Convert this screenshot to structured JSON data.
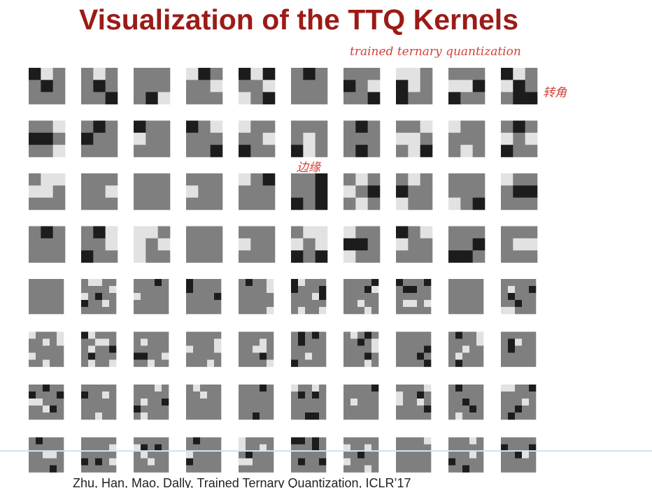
{
  "slide": {
    "title": "Visualization of the TTQ Kernels",
    "annotations": [
      "trained ternary quantization",
      "转角",
      "边缘"
    ],
    "citation": "Zhu, Han, Mao, Dally, Trained Ternary Quantization, ICLR’17"
  }
}
